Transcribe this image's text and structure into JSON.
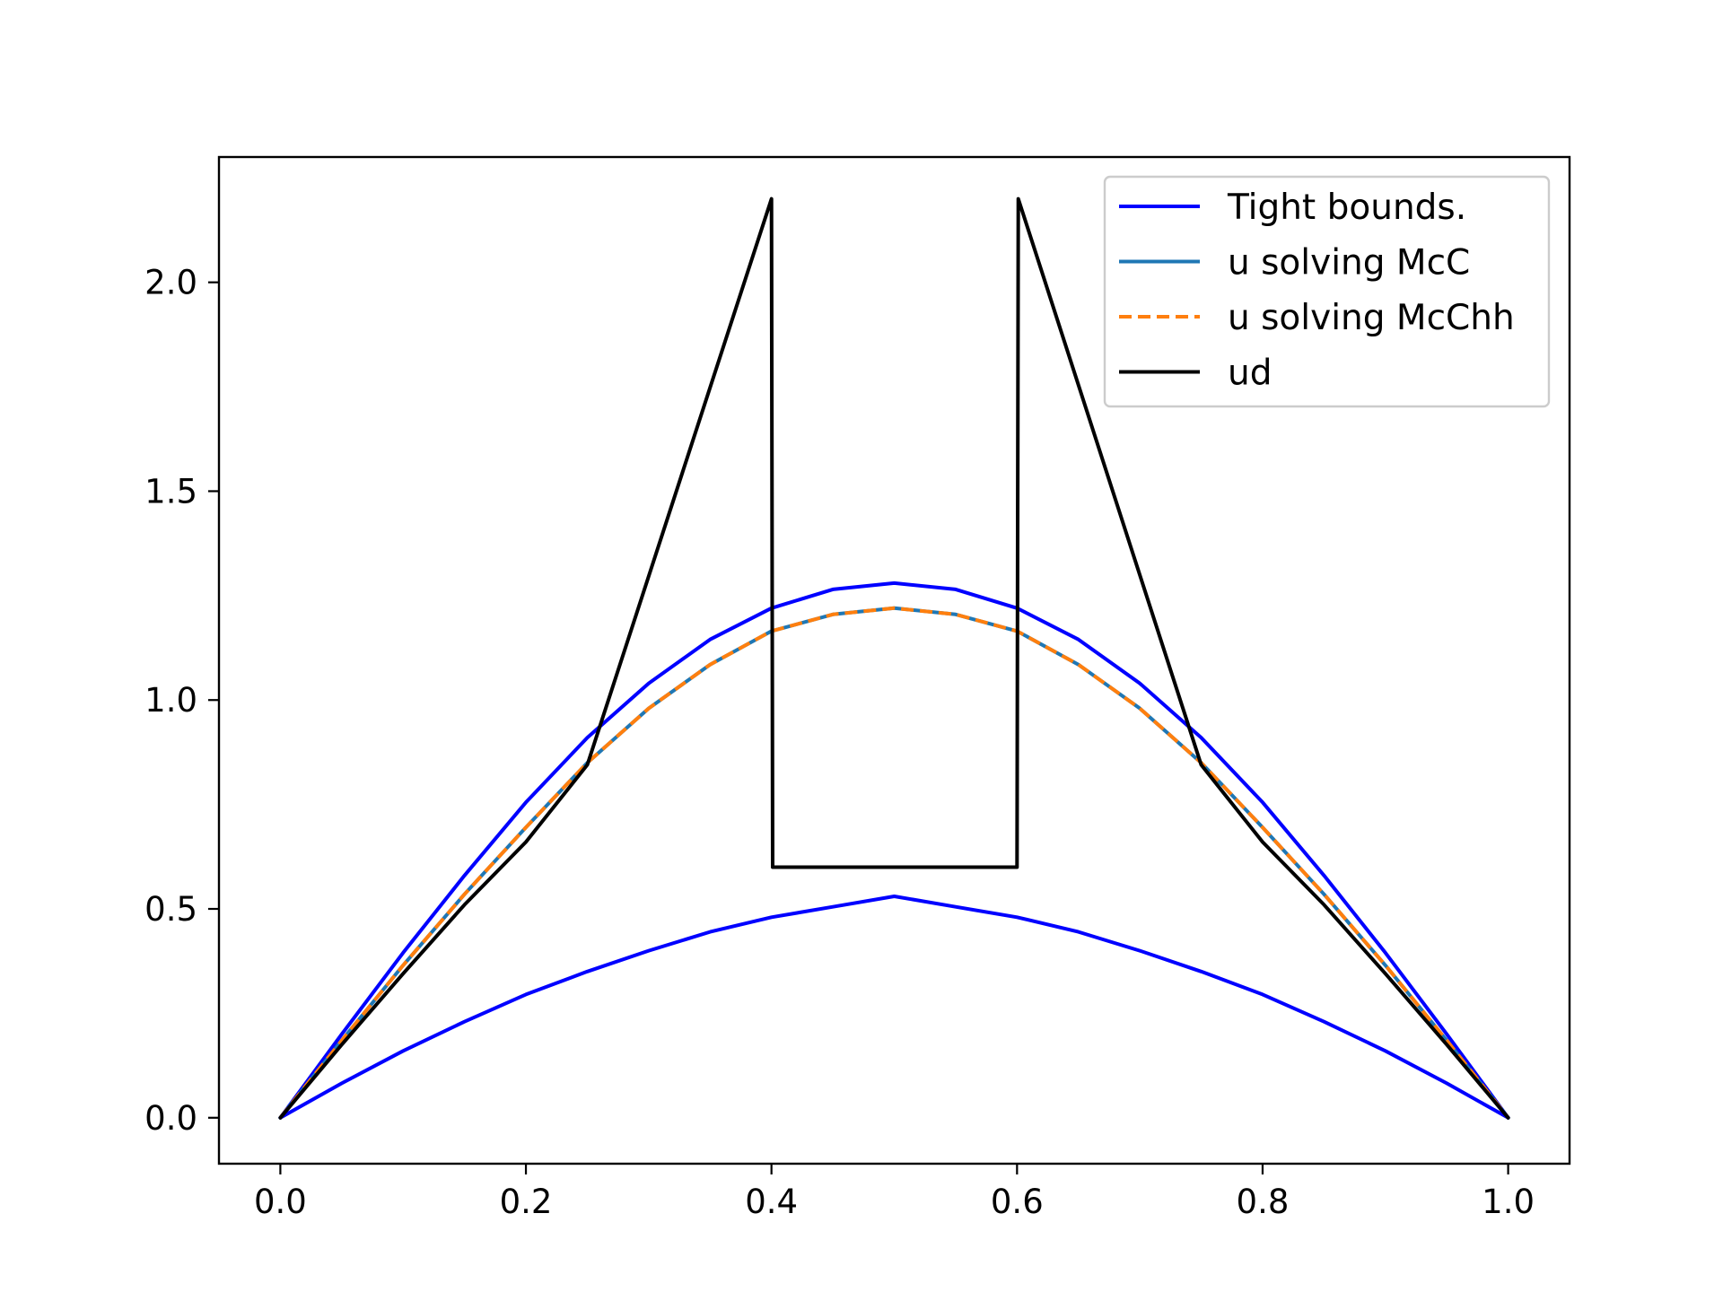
{
  "chart_data": {
    "type": "line",
    "title": "",
    "xlabel": "",
    "ylabel": "",
    "xlim": [
      -0.05,
      1.05
    ],
    "ylim": [
      -0.11,
      2.3
    ],
    "xticks": [
      0.0,
      0.2,
      0.4,
      0.6,
      0.8,
      1.0
    ],
    "xtick_labels": [
      "0.0",
      "0.2",
      "0.4",
      "0.6",
      "0.8",
      "1.0"
    ],
    "yticks": [
      0.0,
      0.5,
      1.0,
      1.5,
      2.0
    ],
    "ytick_labels": [
      "0.0",
      "0.5",
      "1.0",
      "1.5",
      "2.0"
    ],
    "grid": false,
    "legend_position": "upper right",
    "series": [
      {
        "name": "Tight bounds.",
        "color": "#0000ff",
        "style": "solid",
        "x": [
          0.0,
          0.05,
          0.1,
          0.15,
          0.2,
          0.25,
          0.3,
          0.35,
          0.4,
          0.45,
          0.5,
          0.55,
          0.6,
          0.65,
          0.7,
          0.75,
          0.8,
          0.85,
          0.9,
          0.95,
          1.0
        ],
        "y": [
          0.0,
          0.2,
          0.395,
          0.58,
          0.755,
          0.91,
          1.04,
          1.145,
          1.22,
          1.265,
          1.28,
          1.265,
          1.22,
          1.145,
          1.04,
          0.91,
          0.755,
          0.58,
          0.395,
          0.2,
          0.0
        ]
      },
      {
        "name": "",
        "color": "#0000ff",
        "style": "solid",
        "x": [
          0.0,
          0.05,
          0.1,
          0.15,
          0.2,
          0.25,
          0.3,
          0.35,
          0.4,
          0.45,
          0.5,
          0.55,
          0.6,
          0.65,
          0.7,
          0.75,
          0.8,
          0.85,
          0.9,
          0.95,
          1.0
        ],
        "y": [
          0.0,
          0.0825,
          0.16,
          0.23,
          0.295,
          0.35,
          0.4,
          0.445,
          0.48,
          0.505,
          0.53,
          0.505,
          0.48,
          0.445,
          0.4,
          0.35,
          0.295,
          0.23,
          0.16,
          0.0825,
          0.0
        ]
      },
      {
        "name": "u solving McC",
        "color": "#1f77b4",
        "style": "solid",
        "x": [
          0.0,
          0.05,
          0.1,
          0.15,
          0.2,
          0.25,
          0.3,
          0.35,
          0.4,
          0.45,
          0.5,
          0.55,
          0.6,
          0.65,
          0.7,
          0.75,
          0.8,
          0.85,
          0.9,
          0.95,
          1.0
        ],
        "y": [
          0.0,
          0.185,
          0.365,
          0.535,
          0.695,
          0.85,
          0.98,
          1.085,
          1.165,
          1.205,
          1.22,
          1.205,
          1.165,
          1.085,
          0.98,
          0.85,
          0.695,
          0.535,
          0.365,
          0.185,
          0.0
        ]
      },
      {
        "name": "u solving McChh",
        "color": "#ff7f0e",
        "style": "dashed",
        "x": [
          0.0,
          0.05,
          0.1,
          0.15,
          0.2,
          0.25,
          0.3,
          0.35,
          0.4,
          0.45,
          0.5,
          0.55,
          0.6,
          0.65,
          0.7,
          0.75,
          0.8,
          0.85,
          0.9,
          0.95,
          1.0
        ],
        "y": [
          0.0,
          0.185,
          0.365,
          0.535,
          0.695,
          0.85,
          0.98,
          1.085,
          1.165,
          1.205,
          1.22,
          1.205,
          1.165,
          1.085,
          0.98,
          0.85,
          0.695,
          0.535,
          0.365,
          0.185,
          0.0
        ]
      },
      {
        "name": "ud",
        "color": "#000000",
        "style": "solid",
        "x": [
          0.0,
          0.05,
          0.1,
          0.15,
          0.2,
          0.25,
          0.4,
          0.401,
          0.6,
          0.601,
          0.75,
          0.8,
          0.85,
          0.9,
          0.95,
          1.0
        ],
        "y": [
          0.0,
          0.175,
          0.345,
          0.51,
          0.66,
          0.845,
          2.2,
          0.6,
          0.6,
          2.2,
          0.845,
          0.66,
          0.51,
          0.345,
          0.175,
          0.0
        ]
      }
    ]
  }
}
